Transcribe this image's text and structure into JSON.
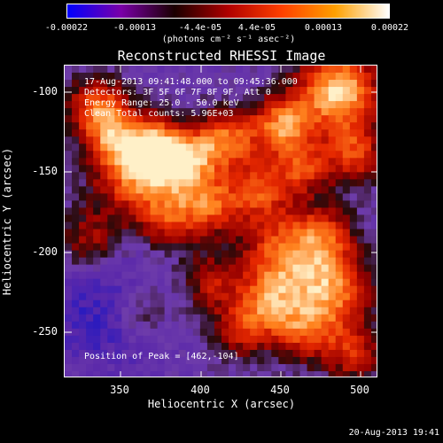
{
  "colorbar": {
    "ticks": [
      "-0.00022",
      "-0.00013",
      "-4.4e-05",
      "4.4e-05",
      "0.00013",
      "0.00022"
    ],
    "label": "(photons cm⁻² s⁻¹ asec⁻²)",
    "colors": [
      "#0000ff",
      "#7a00a8",
      "#1a0000",
      "#b00000",
      "#ff4000",
      "#ffa000",
      "#ffffff"
    ]
  },
  "title": "Reconstructed RHESSI Image",
  "info": {
    "time_range": "17-Aug-2013 09:41:48.000 to 09:45:36.000",
    "detectors": "Detectors: 3F 5F 6F 7F 8F 9F, Att 0",
    "energy": "Energy Range: 25.0 - 50.0 keV",
    "clean": "Clean     Total counts: 5.96E+03",
    "peak": "Position of Peak = [462,-104]"
  },
  "axes": {
    "xlabel": "Heliocentric X (arcsec)",
    "ylabel": "Heliocentric Y (arcsec)",
    "xticks": [
      "350",
      "400",
      "450",
      "500"
    ],
    "yticks": [
      "-100",
      "-150",
      "-200",
      "-250"
    ]
  },
  "timestamp": "20-Aug-2013 19:41"
}
